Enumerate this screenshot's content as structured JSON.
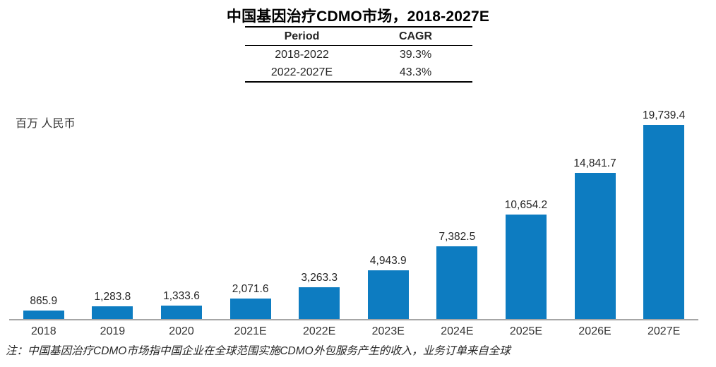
{
  "title": "中国基因治疗CDMO市场，2018-2027E",
  "cagr_table": {
    "headers": [
      "Period",
      "CAGR"
    ],
    "rows": [
      [
        "2018-2022",
        "39.3%"
      ],
      [
        "2022-2027E",
        "43.3%"
      ]
    ]
  },
  "unit_label": "百万 人民币",
  "footnote": "注：中国基因治疗CDMO市场指中国企业在全球范围实施CDMO外包服务产生的收入，业务订单来自全球",
  "colors": {
    "bar": "#0d7cc1",
    "axis": "#a6a6a6",
    "text": "#262626"
  },
  "chart_data": {
    "type": "bar",
    "title": "中国基因治疗CDMO市场，2018-2027E",
    "xlabel": "",
    "ylabel": "百万 人民币",
    "categories": [
      "2018",
      "2019",
      "2020",
      "2021E",
      "2022E",
      "2023E",
      "2024E",
      "2025E",
      "2026E",
      "2027E"
    ],
    "values": [
      865.9,
      1283.8,
      1333.6,
      2071.6,
      3263.3,
      4943.9,
      7382.5,
      10654.2,
      14841.7,
      19739.4
    ],
    "value_labels": [
      "865.9",
      "1,283.8",
      "1,333.6",
      "2,071.6",
      "3,263.3",
      "4,943.9",
      "7,382.5",
      "10,654.2",
      "14,841.7",
      "19,739.4"
    ],
    "ylim": [
      0,
      19739.4
    ],
    "grid": false,
    "legend": false,
    "bar_color": "#0d7cc1",
    "baseline_color": "#a6a6a6",
    "annotations": [
      {
        "table": "CAGR",
        "rows": [
          [
            "2018-2022",
            "39.3%"
          ],
          [
            "2022-2027E",
            "43.3%"
          ]
        ]
      }
    ]
  }
}
